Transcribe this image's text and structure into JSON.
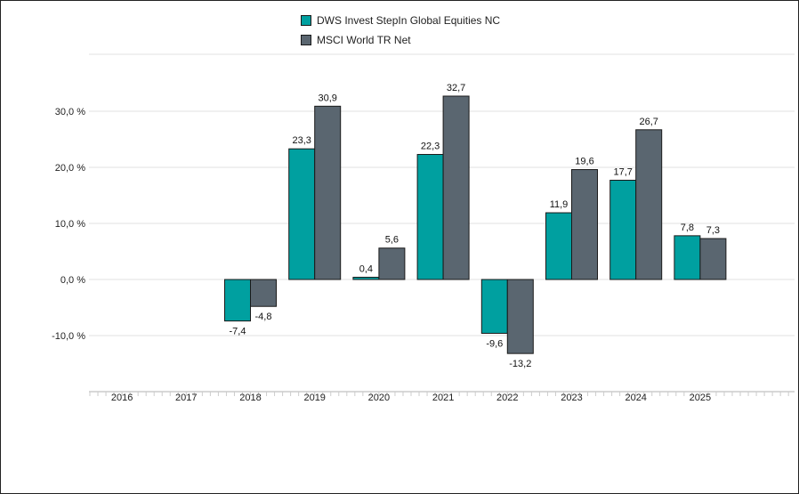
{
  "chart_data": {
    "type": "bar",
    "categories": [
      "2016",
      "2017",
      "2018",
      "2019",
      "2020",
      "2021",
      "2022",
      "2023",
      "2024",
      "2025"
    ],
    "series": [
      {
        "name": "DWS Invest StepIn Global Equities NC",
        "color": "#00a0a0",
        "values": [
          null,
          null,
          -7.4,
          23.3,
          0.4,
          22.3,
          -9.6,
          11.9,
          17.7,
          7.8
        ],
        "labels": [
          "",
          "",
          "-7,4",
          "23,3",
          "0,4",
          "22,3",
          "-9,6",
          "11,9",
          "17,7",
          "7,8"
        ]
      },
      {
        "name": "MSCI World TR Net",
        "color": "#5a6670",
        "values": [
          null,
          null,
          -4.8,
          30.9,
          5.6,
          32.7,
          -13.2,
          19.6,
          26.7,
          7.3
        ],
        "labels": [
          "",
          "",
          "-4,8",
          "30,9",
          "5,6",
          "32,7",
          "-13,2",
          "19,6",
          "26,7",
          "7,3"
        ]
      }
    ],
    "y_ticks": [
      30,
      20,
      10,
      0,
      -10
    ],
    "y_tick_labels": [
      "30,0 %",
      "20,0 %",
      "10,0 %",
      "0,0 %",
      "-10,0 %"
    ],
    "ylim": [
      -20,
      40
    ],
    "grid": true,
    "legend_position": "top-center",
    "title": "",
    "xlabel": "",
    "ylabel": ""
  }
}
